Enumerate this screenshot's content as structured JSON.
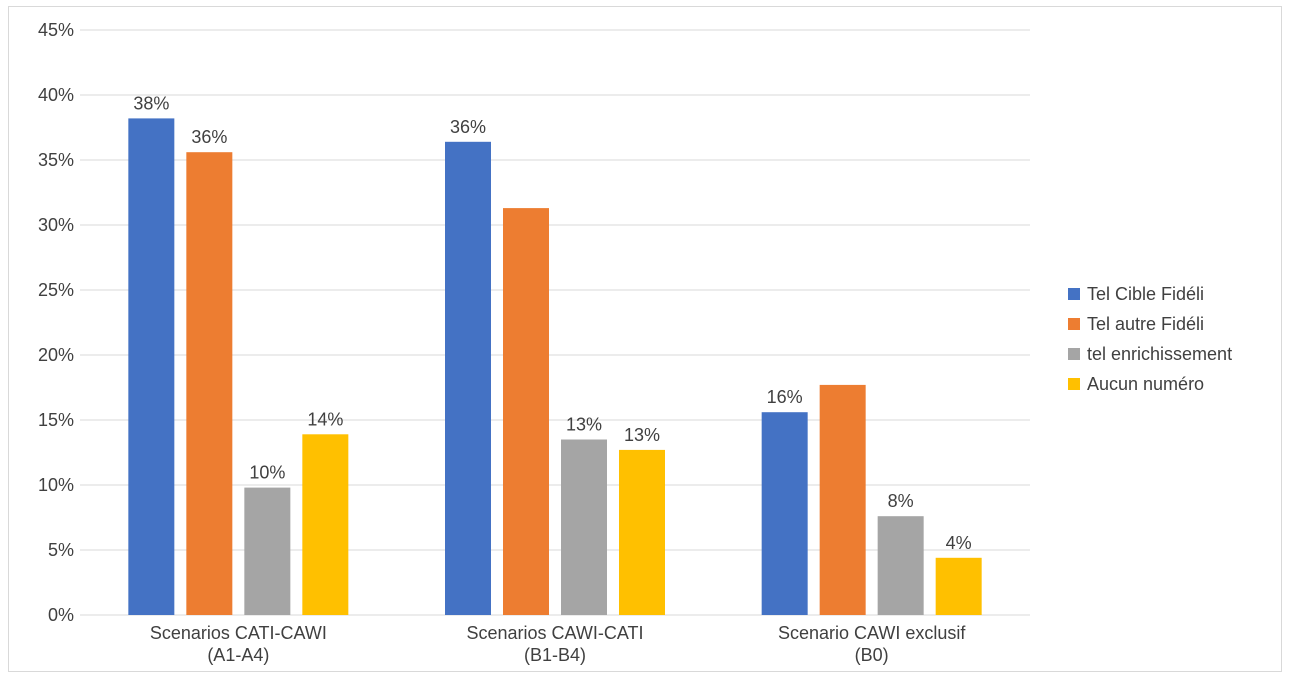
{
  "chart_data": {
    "type": "bar",
    "categories": [
      [
        "Scenarios CATI-CAWI",
        "(A1-A4)"
      ],
      [
        "Scenarios CAWI-CATI",
        "(B1-B4)"
      ],
      [
        "Scenario CAWI exclusif",
        "(B0)"
      ]
    ],
    "series": [
      {
        "name": "Tel Cible Fidéli",
        "color": "#4472c4",
        "values": [
          38.2,
          36.4,
          15.6
        ],
        "labels": [
          "38%",
          "36%",
          "16%"
        ]
      },
      {
        "name": "Tel autre Fidéli",
        "color": "#ed7d31",
        "values": [
          35.6,
          31.3,
          17.7
        ],
        "labels": [
          "36%",
          "",
          ""
        ]
      },
      {
        "name": "tel enrichissement",
        "color": "#a5a5a5",
        "values": [
          9.8,
          13.5,
          7.6
        ],
        "labels": [
          "10%",
          "13%",
          "8%"
        ]
      },
      {
        "name": "Aucun numéro",
        "color": "#ffc000",
        "values": [
          13.9,
          12.7,
          4.4
        ],
        "labels": [
          "14%",
          "13%",
          "4%"
        ]
      }
    ],
    "yticks": [
      "0%",
      "5%",
      "10%",
      "15%",
      "20%",
      "25%",
      "30%",
      "35%",
      "40%",
      "45%"
    ],
    "ylim": [
      0,
      45
    ],
    "grid": true,
    "legend_position": "right",
    "title": "",
    "xlabel": "",
    "ylabel": ""
  }
}
